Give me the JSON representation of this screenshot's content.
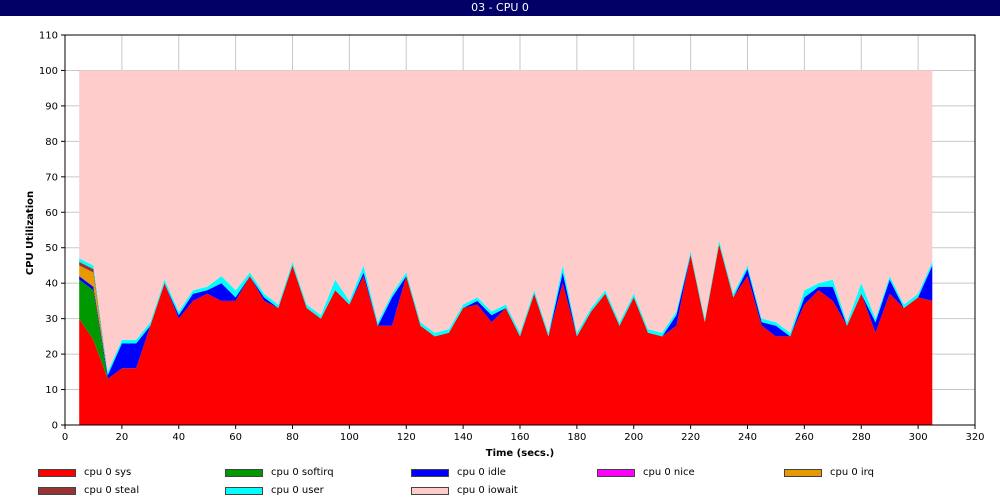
{
  "window": {
    "title": "03 - CPU 0"
  },
  "chart_data": {
    "type": "area",
    "stacked": true,
    "xlabel": "Time (secs.)",
    "ylabel": "CPU Utilization",
    "xlim": [
      0,
      320
    ],
    "ylim": [
      0,
      110
    ],
    "xticks": [
      0,
      20,
      40,
      60,
      80,
      100,
      120,
      140,
      160,
      180,
      200,
      220,
      240,
      260,
      280,
      300,
      320
    ],
    "yticks": [
      0,
      10,
      20,
      30,
      40,
      50,
      60,
      70,
      80,
      90,
      100,
      110
    ],
    "grid": true,
    "legend_position": "bottom",
    "x": [
      5,
      10,
      15,
      20,
      25,
      30,
      35,
      40,
      45,
      50,
      55,
      60,
      65,
      70,
      75,
      80,
      85,
      90,
      95,
      100,
      105,
      110,
      115,
      120,
      125,
      130,
      135,
      140,
      145,
      150,
      155,
      160,
      165,
      170,
      175,
      180,
      185,
      190,
      195,
      200,
      205,
      210,
      215,
      220,
      225,
      230,
      235,
      240,
      245,
      250,
      255,
      260,
      265,
      270,
      275,
      280,
      285,
      290,
      295,
      300,
      305
    ],
    "series": [
      {
        "name": "cpu 0 sys",
        "color": "#ff0000",
        "values": [
          30,
          24,
          13,
          16,
          16,
          28,
          40,
          30,
          35,
          37,
          35,
          35,
          42,
          35,
          33,
          45,
          33,
          30,
          38,
          34,
          42,
          28,
          28,
          42,
          28,
          25,
          26,
          33,
          34,
          29,
          33,
          25,
          37,
          25,
          40,
          25,
          32,
          37,
          28,
          36,
          26,
          25,
          28,
          48,
          29,
          51,
          36,
          42,
          28,
          25,
          25,
          34,
          38,
          35,
          28,
          37,
          26,
          37,
          33,
          36,
          35
        ]
      },
      {
        "name": "cpu 0 softirq",
        "color": "#009900",
        "values": [
          11,
          14,
          0,
          0,
          0,
          0,
          0,
          0,
          0,
          0,
          0,
          0,
          0,
          0,
          0,
          0,
          0,
          0,
          0,
          0,
          0,
          0,
          0,
          0,
          0,
          0,
          0,
          0,
          0,
          0,
          0,
          0,
          0,
          0,
          0,
          0,
          0,
          0,
          0,
          0,
          0,
          0,
          0,
          0,
          0,
          0,
          0,
          0,
          0,
          0,
          0,
          0,
          0,
          0,
          0,
          0,
          0,
          0,
          0,
          0,
          0
        ]
      },
      {
        "name": "cpu 0 idle",
        "color": "#0000ff",
        "values": [
          1,
          1,
          1,
          7,
          7,
          0,
          0,
          1,
          2,
          1,
          5,
          1,
          0,
          1,
          0,
          0,
          0,
          0,
          0,
          0,
          1,
          0,
          8,
          0,
          0,
          0,
          0,
          0,
          1,
          2,
          0,
          0,
          0,
          0,
          3,
          0,
          0,
          0,
          0,
          0,
          0,
          0,
          3,
          0,
          0,
          0,
          0,
          2,
          1,
          3,
          0,
          2,
          1,
          4,
          0,
          0,
          3,
          4,
          0,
          0,
          10
        ]
      },
      {
        "name": "cpu 0 nice",
        "color": "#ff00ff",
        "values": [
          0,
          0,
          0,
          0,
          0,
          0,
          0,
          0,
          0,
          0,
          0,
          0,
          0,
          0,
          0,
          0,
          0,
          0,
          0,
          0,
          0,
          0,
          0,
          0,
          0,
          0,
          0,
          0,
          0,
          0,
          0,
          0,
          0,
          0,
          0,
          0,
          0,
          0,
          0,
          0,
          0,
          0,
          0,
          0,
          0,
          0,
          0,
          0,
          0,
          0,
          0,
          0,
          0,
          0,
          0,
          0,
          0,
          0,
          0,
          0,
          0
        ]
      },
      {
        "name": "cpu 0 irq",
        "color": "#e69900",
        "values": [
          3,
          4,
          0,
          0,
          0,
          0,
          0,
          0,
          0,
          0,
          0,
          0,
          0,
          0,
          0,
          0,
          0,
          0,
          0,
          0,
          0,
          0,
          0,
          0,
          0,
          0,
          0,
          0,
          0,
          0,
          0,
          0,
          0,
          0,
          0,
          0,
          0,
          0,
          0,
          0,
          0,
          0,
          0,
          0,
          0,
          0,
          0,
          0,
          0,
          0,
          0,
          0,
          0,
          0,
          0,
          0,
          0,
          0,
          0,
          0,
          0
        ]
      },
      {
        "name": "cpu 0 steal",
        "color": "#993333",
        "values": [
          1,
          1,
          0,
          0,
          0,
          0,
          0,
          0,
          0,
          0,
          0,
          0,
          0,
          0,
          0,
          0,
          0,
          0,
          0,
          0,
          0,
          0,
          0,
          0,
          0,
          0,
          0,
          0,
          0,
          0,
          0,
          0,
          0,
          0,
          0,
          0,
          0,
          0,
          0,
          0,
          0,
          0,
          0,
          0,
          0,
          0,
          0,
          0,
          0,
          0,
          0,
          0,
          0,
          0,
          0,
          0,
          0,
          0,
          0,
          0,
          0
        ]
      },
      {
        "name": "cpu 0 user",
        "color": "#00ffff",
        "values": [
          1,
          1,
          1,
          1,
          1,
          1,
          1,
          1,
          1,
          1,
          2,
          2,
          1,
          1,
          1,
          1,
          1,
          1,
          3,
          1,
          2,
          1,
          1,
          1,
          1,
          1,
          1,
          1,
          1,
          1,
          1,
          1,
          1,
          1,
          2,
          1,
          1,
          1,
          1,
          1,
          1,
          1,
          1,
          1,
          1,
          1,
          1,
          1,
          1,
          1,
          1,
          2,
          1,
          2,
          1,
          3,
          1,
          1,
          1,
          1,
          1
        ]
      },
      {
        "name": "cpu 0 iowait",
        "color": "#ffcccc",
        "values": [
          53,
          55,
          85,
          76,
          76,
          71,
          59,
          68,
          62,
          61,
          58,
          62,
          57,
          63,
          66,
          54,
          66,
          69,
          59,
          65,
          55,
          71,
          63,
          57,
          71,
          74,
          73,
          66,
          64,
          68,
          66,
          74,
          62,
          74,
          55,
          74,
          67,
          62,
          71,
          63,
          73,
          74,
          68,
          51,
          70,
          48,
          63,
          55,
          70,
          71,
          74,
          62,
          60,
          59,
          71,
          60,
          70,
          58,
          66,
          63,
          54
        ]
      }
    ]
  }
}
